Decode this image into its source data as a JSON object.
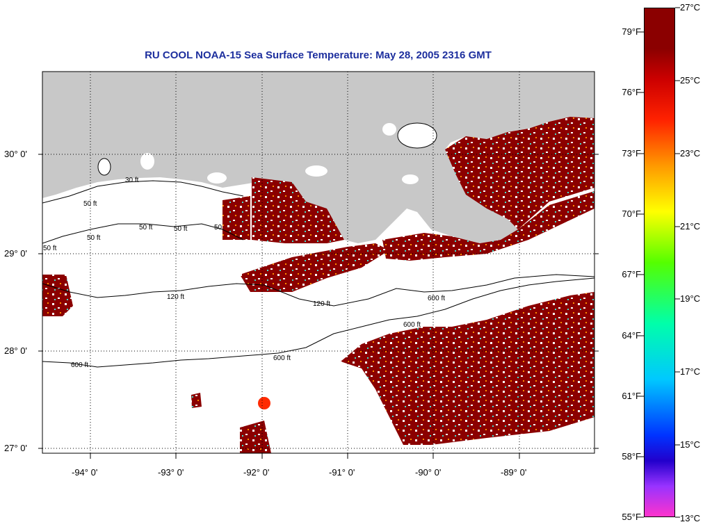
{
  "title": "RU COOL  NOAA-15  Sea Surface Temperature:  May 28, 2005 2316 GMT",
  "map": {
    "lat_labels": [
      "30° 0'",
      "29° 0'",
      "28° 0'",
      "27° 0'"
    ],
    "lon_labels": [
      "-94° 0'",
      "-93° 0'",
      "-92° 0'",
      "-91° 0'",
      "-90° 0'",
      "-89° 0'"
    ],
    "contour_labels": [
      "30 ft",
      "50 ft",
      "50 ft",
      "50 ft",
      "50 ft",
      "50",
      "50 ft",
      "120 ft",
      "120 ft",
      "600 ft",
      "600 ft",
      "600 ft",
      "600 ft"
    ],
    "colors": {
      "land": "#c8c8c8",
      "sst_warm": "#8b0000",
      "no_data": "#ffffff",
      "contour": "#000000"
    }
  },
  "colorbar": {
    "fahrenheit_labels": [
      "79°F",
      "76°F",
      "73°F",
      "70°F",
      "67°F",
      "64°F",
      "61°F",
      "58°F",
      "55°F"
    ],
    "celsius_labels": [
      "27°C",
      "25°C",
      "23°C",
      "21°C",
      "19°C",
      "17°C",
      "15°C",
      "13°C"
    ]
  }
}
